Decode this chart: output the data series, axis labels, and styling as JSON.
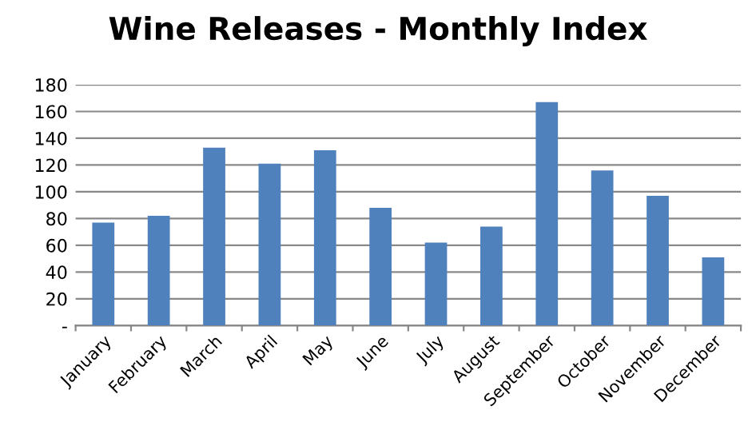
{
  "chart_data": {
    "type": "bar",
    "title": "Wine Releases - Monthly Index",
    "categories": [
      "January",
      "February",
      "March",
      "April",
      "May",
      "June",
      "July",
      "August",
      "September",
      "October",
      "November",
      "December"
    ],
    "values": [
      77,
      82,
      133,
      121,
      131,
      88,
      62,
      74,
      167,
      116,
      97,
      51
    ],
    "color": "#4f81bd",
    "ylim": [
      0,
      180
    ],
    "yticks": [
      {
        "value": 0,
        "label": "-"
      },
      20,
      40,
      60,
      80,
      100,
      120,
      140,
      160,
      180
    ],
    "grid": "y"
  }
}
